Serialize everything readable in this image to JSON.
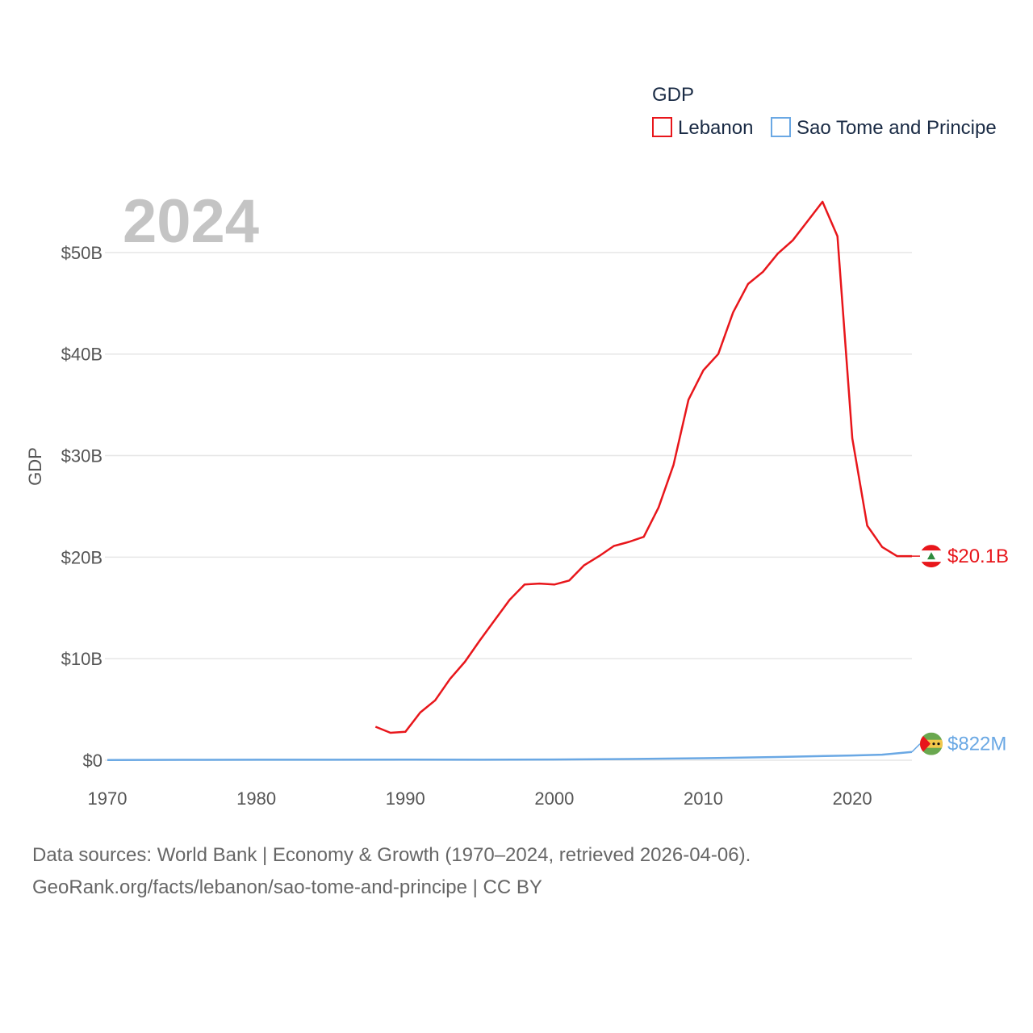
{
  "chart_data": {
    "type": "line",
    "legend_title": "GDP",
    "year_label": "2024",
    "ylabel": "GDP",
    "xlim": [
      1970,
      2024
    ],
    "ylim": [
      0,
      55
    ],
    "x_ticks": [
      1970,
      1980,
      1990,
      2000,
      2010,
      2020
    ],
    "x_tick_labels": [
      "1970",
      "1980",
      "1990",
      "2000",
      "2010",
      "2020"
    ],
    "y_ticks": [
      0,
      10,
      20,
      30,
      40,
      50
    ],
    "y_tick_labels": [
      "$0",
      "$10B",
      "$20B",
      "$30B",
      "$40B",
      "$50B"
    ],
    "series": [
      {
        "name": "Lebanon",
        "color": "#e8161b",
        "end_label": "$20.1B",
        "x": [
          1988,
          1989,
          1990,
          1991,
          1992,
          1993,
          1994,
          1995,
          1996,
          1997,
          1998,
          1999,
          2000,
          2001,
          2002,
          2003,
          2004,
          2005,
          2006,
          2007,
          2008,
          2009,
          2010,
          2011,
          2012,
          2013,
          2014,
          2015,
          2016,
          2017,
          2018,
          2019,
          2020,
          2021,
          2022,
          2023,
          2024
        ],
        "values": [
          3.3,
          2.7,
          2.8,
          4.7,
          5.9,
          8.0,
          9.7,
          11.8,
          13.8,
          15.8,
          17.3,
          17.4,
          17.3,
          17.7,
          19.2,
          20.1,
          21.1,
          21.5,
          22.0,
          24.9,
          29.1,
          35.5,
          38.4,
          40.0,
          44.1,
          46.9,
          48.1,
          49.9,
          51.2,
          53.1,
          55.0,
          51.6,
          31.7,
          23.1,
          21.0,
          20.1,
          20.1
        ]
      },
      {
        "name": "Sao Tome and Principe",
        "color": "#6aa8e4",
        "end_label": "$822M",
        "x": [
          1970,
          1975,
          1980,
          1985,
          1990,
          1995,
          2000,
          2005,
          2010,
          2015,
          2020,
          2022,
          2024
        ],
        "values": [
          0.02,
          0.04,
          0.05,
          0.05,
          0.06,
          0.05,
          0.07,
          0.12,
          0.2,
          0.32,
          0.47,
          0.55,
          0.82
        ]
      }
    ]
  },
  "source": {
    "line1": "Data sources: World Bank | Economy & Growth (1970–2024, retrieved 2026-04-06).",
    "line2": "GeoRank.org/facts/lebanon/sao-tome-and-principe | CC BY"
  }
}
